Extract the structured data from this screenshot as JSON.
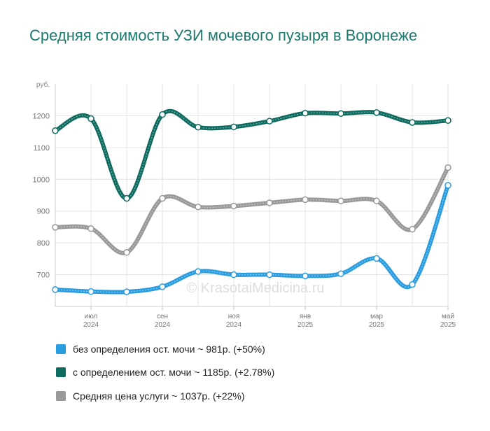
{
  "title": "Средняя стоимость УЗИ мочевого пузыря в Воронеже",
  "watermark": "© KrasotaiMedicina.ru",
  "legend": [
    {
      "label": "без определения ост. мочи ~ 981р. (+50%)",
      "color": "#2a9de0"
    },
    {
      "label": "с определением ост. мочи ~ 1185р. (+2.78%)",
      "color": "#0d6b5f"
    },
    {
      "label": "Средняя цена услуги ~ 1037р. (+22%)",
      "color": "#999999"
    }
  ],
  "chart_data": {
    "type": "line",
    "y_unit": "руб.",
    "ylim": [
      600,
      1300
    ],
    "y_ticks": [
      700,
      800,
      900,
      1000,
      1100,
      1200
    ],
    "x": [
      "2024-06",
      "2024-07",
      "2024-08",
      "2024-09",
      "2024-10",
      "2024-11",
      "2024-12",
      "2025-01",
      "2025-02",
      "2025-03",
      "2025-04",
      "2025-05"
    ],
    "x_tick_labels": [
      {
        "month": "2024-07",
        "line1": "июл",
        "line2": "2024"
      },
      {
        "month": "2024-09",
        "line1": "сен",
        "line2": "2024"
      },
      {
        "month": "2024-11",
        "line1": "ноя",
        "line2": "2024"
      },
      {
        "month": "2025-01",
        "line1": "янв",
        "line2": "2025"
      },
      {
        "month": "2025-03",
        "line1": "мар",
        "line2": "2025"
      },
      {
        "month": "2025-05",
        "line1": "май",
        "line2": "2025"
      }
    ],
    "grid": true,
    "series": [
      {
        "name": "без определения ост. мочи",
        "color": "#2a9de0",
        "values": [
          653,
          647,
          646,
          662,
          710,
          700,
          700,
          696,
          703,
          751,
          669,
          981
        ]
      },
      {
        "name": "с определением ост. мочи",
        "color": "#0d6b5f",
        "values": [
          1153,
          1191,
          940,
          1204,
          1164,
          1165,
          1183,
          1208,
          1207,
          1210,
          1179,
          1185
        ]
      },
      {
        "name": "Средняя цена услуги",
        "color": "#999999",
        "values": [
          849,
          845,
          770,
          940,
          913,
          916,
          926,
          936,
          932,
          932,
          843,
          1037
        ]
      }
    ]
  }
}
